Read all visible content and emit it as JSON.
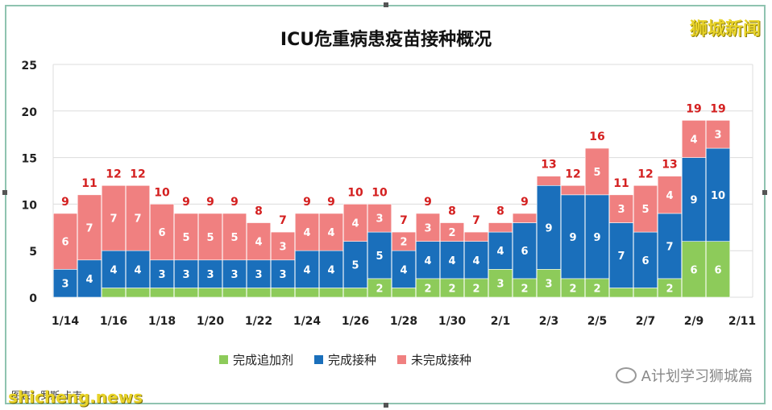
{
  "watermark_top": "狮城新闻",
  "watermark_bottom": "shicheng.news",
  "source_note": "图表：罗斯·卡吉",
  "account_tag": "A计划学习狮城篇",
  "colors": {
    "booster": "#8dcb5a",
    "completed": "#1a6fbb",
    "incomplete": "#f08080",
    "total_label": "#d42020",
    "grid": "#dcdcdc",
    "frame": "#8fc3b0"
  },
  "chart_data": {
    "type": "bar",
    "stacked": true,
    "title": "ICU危重病患疫苗接种概况",
    "ylim": [
      0,
      25
    ],
    "yticks": [
      "0",
      "5",
      "10",
      "15",
      "20",
      "25"
    ],
    "xtick_labels": [
      "1/14",
      "1/16",
      "1/18",
      "1/20",
      "1/22",
      "1/24",
      "1/26",
      "1/28",
      "1/30",
      "2/1",
      "2/3",
      "2/5",
      "2/7",
      "2/9",
      "2/11"
    ],
    "categories": [
      "1/14",
      "1/15",
      "1/16",
      "1/17",
      "1/18",
      "1/19",
      "1/20",
      "1/21",
      "1/22",
      "1/23",
      "1/24",
      "1/25",
      "1/26",
      "1/27",
      "1/28",
      "1/29",
      "1/30",
      "1/31",
      "2/1",
      "2/2",
      "2/3",
      "2/4",
      "2/5",
      "2/6",
      "2/7",
      "2/8",
      "2/9",
      "2/10"
    ],
    "legend_position": "bottom",
    "series": [
      {
        "name": "完成追加剂",
        "values": [
          0,
          0,
          1,
          1,
          1,
          1,
          1,
          1,
          1,
          1,
          1,
          1,
          1,
          2,
          1,
          2,
          2,
          2,
          3,
          2,
          3,
          2,
          2,
          1,
          1,
          2,
          6,
          6
        ]
      },
      {
        "name": "完成接种",
        "values": [
          3,
          4,
          4,
          4,
          3,
          3,
          3,
          3,
          3,
          3,
          4,
          4,
          5,
          5,
          4,
          4,
          4,
          4,
          4,
          6,
          9,
          9,
          9,
          7,
          6,
          7,
          9,
          10
        ]
      },
      {
        "name": "未完成接种",
        "values": [
          6,
          7,
          7,
          7,
          6,
          5,
          5,
          5,
          4,
          3,
          4,
          4,
          4,
          3,
          2,
          3,
          2,
          1,
          1,
          1,
          1,
          1,
          5,
          3,
          5,
          4,
          4,
          3
        ]
      }
    ],
    "segment_labels": {
      "booster": [
        "",
        "",
        "",
        "",
        "",
        "",
        "",
        "",
        "",
        "",
        "",
        "",
        "",
        "2",
        "",
        "2",
        "2",
        "2",
        "3",
        "2",
        "3",
        "2",
        "2",
        "",
        "",
        "2",
        "6",
        "6"
      ],
      "completed": [
        "3",
        "4",
        "4",
        "4",
        "3",
        "3",
        "3",
        "3",
        "3",
        "3",
        "4",
        "4",
        "5",
        "5",
        "4",
        "4",
        "4",
        "4",
        "4",
        "6",
        "9",
        "9",
        "9",
        "7",
        "6",
        "7",
        "9",
        "10"
      ],
      "incomplete": [
        "6",
        "7",
        "7",
        "7",
        "6",
        "5",
        "5",
        "5",
        "4",
        "3",
        "4",
        "4",
        "4",
        "3",
        "2",
        "3",
        "2",
        "",
        "",
        "",
        "",
        "",
        "5",
        "3",
        "5",
        "4",
        "4",
        "3"
      ]
    },
    "totals": [
      9,
      11,
      12,
      12,
      10,
      9,
      9,
      9,
      8,
      7,
      9,
      9,
      10,
      10,
      7,
      9,
      8,
      7,
      8,
      9,
      13,
      12,
      16,
      11,
      12,
      13,
      19,
      19
    ]
  }
}
